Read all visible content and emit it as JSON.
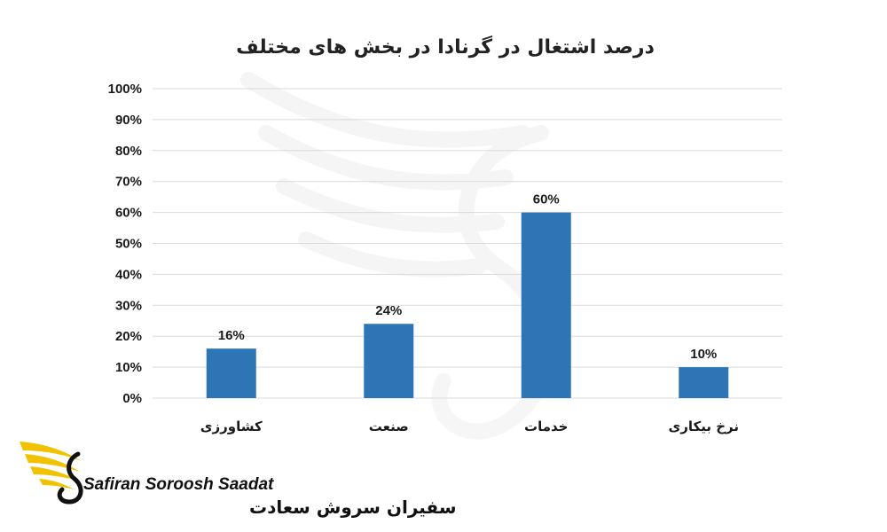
{
  "chart_data": {
    "type": "bar",
    "title": "درصد اشتغال در گرنادا در بخش های مختلف",
    "categories": [
      "کشاورزی",
      "صنعت",
      "خدمات",
      "نرخ بیکاری"
    ],
    "values": [
      16,
      24,
      60,
      10
    ],
    "data_labels": [
      "16%",
      "24%",
      "60%",
      "10%"
    ],
    "ylim": [
      0,
      100
    ],
    "yticks": [
      "0%",
      "10%",
      "20%",
      "30%",
      "40%",
      "50%",
      "60%",
      "70%",
      "80%",
      "90%",
      "100%"
    ],
    "grid": true,
    "legend": "none",
    "bar_color": "#2e75b6",
    "grid_color": "#d9d9d9"
  },
  "brand": {
    "name_en": "Safiran Soroosh Saadat",
    "name_fa": "سفیران سروش سعادت",
    "logo_icon": "golden-wing-icon",
    "watermark_icon": "wing-swan-watermark-icon",
    "gold": "#f2c200"
  }
}
